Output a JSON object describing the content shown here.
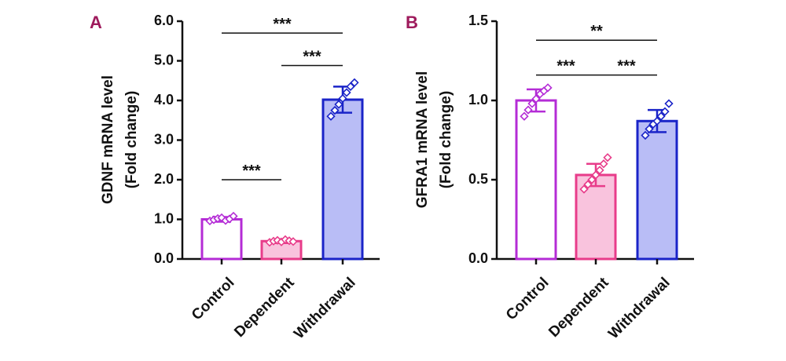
{
  "colors": {
    "panel_letter": "#9e1a5c",
    "control_stroke": "#b42cd6",
    "dependent_stroke": "#e83c8a",
    "dependent_fill": "#f9c3dd",
    "withdrawal_stroke": "#1a24c8",
    "withdrawal_fill": "#b9bdf6"
  },
  "chart_data": [
    {
      "type": "bar",
      "panel": "A",
      "ylabel_line1": "GDNF mRNA level",
      "ylabel_line2": "(Fold change)",
      "categories": [
        "Control",
        "Dependent",
        "Withdrawal"
      ],
      "values": [
        1.0,
        0.45,
        4.02
      ],
      "error_sd": [
        0.06,
        0.05,
        0.33
      ],
      "points": [
        [
          0.96,
          0.99,
          1.02,
          1.04,
          0.97,
          1.01,
          1.08
        ],
        [
          0.42,
          0.45,
          0.47,
          0.43,
          0.49,
          0.46,
          0.44
        ],
        [
          3.6,
          3.75,
          3.9,
          4.05,
          4.2,
          4.35,
          4.45
        ]
      ],
      "ylim": [
        0,
        6
      ],
      "yticks": [
        "0.0",
        "1.0",
        "2.0",
        "3.0",
        "4.0",
        "5.0",
        "6.0"
      ],
      "significance": [
        {
          "from": 0,
          "to": 2,
          "level": 5.7,
          "label": "***"
        },
        {
          "from": 1,
          "to": 2,
          "level": 4.88,
          "label": "***"
        },
        {
          "from": 0,
          "to": 1,
          "level": 2.0,
          "label": "***"
        }
      ]
    },
    {
      "type": "bar",
      "panel": "B",
      "ylabel_line1": "GFRA1 mRNA level",
      "ylabel_line2": "(Fold change)",
      "categories": [
        "Control",
        "Dependent",
        "Withdrawal"
      ],
      "values": [
        1.0,
        0.53,
        0.87
      ],
      "error_sd": [
        0.07,
        0.07,
        0.07
      ],
      "points": [
        [
          0.9,
          0.94,
          0.98,
          1.01,
          1.04,
          1.06,
          1.08
        ],
        [
          0.44,
          0.47,
          0.5,
          0.53,
          0.56,
          0.6,
          0.64
        ],
        [
          0.78,
          0.82,
          0.85,
          0.87,
          0.9,
          0.93,
          0.98
        ]
      ],
      "ylim": [
        0,
        1.5
      ],
      "yticks": [
        "0.0",
        "0.5",
        "1.0",
        "1.5"
      ],
      "significance": [
        {
          "from": 0,
          "to": 2,
          "level": 1.38,
          "label": "**"
        },
        {
          "from": 0,
          "to": 1,
          "level": 1.16,
          "label": "***"
        },
        {
          "from": 1,
          "to": 2,
          "level": 1.16,
          "label": "***"
        }
      ]
    }
  ]
}
